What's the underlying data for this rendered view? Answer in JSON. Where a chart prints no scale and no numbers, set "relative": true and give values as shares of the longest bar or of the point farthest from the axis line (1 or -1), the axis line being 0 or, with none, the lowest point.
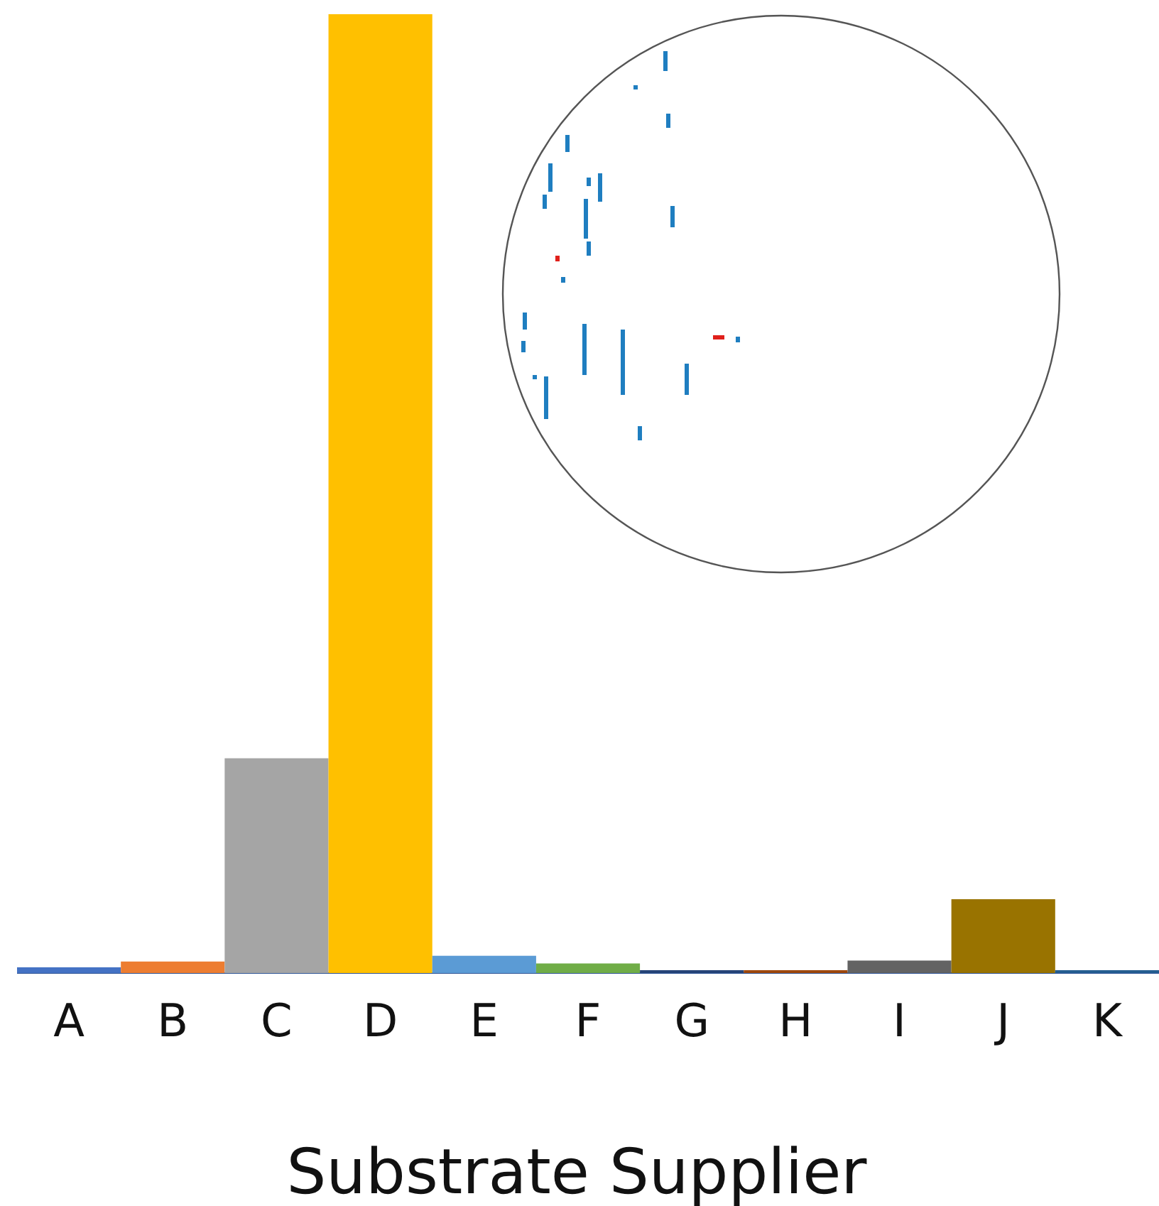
{
  "chart_data": {
    "type": "bar",
    "relative": true,
    "xlabel": "Substrate Supplier",
    "categories": [
      "A",
      "B",
      "C",
      "D",
      "E",
      "F",
      "G",
      "H",
      "I",
      "J",
      "K"
    ],
    "values": [
      0.006,
      0.012,
      0.224,
      1,
      0.018,
      0.01,
      0.003,
      0.003,
      0.013,
      0.077,
      0.003
    ],
    "colors": [
      "#4472c4",
      "#ed7d31",
      "#a5a5a5",
      "#ffc000",
      "#5b9bd5",
      "#70ad47",
      "#264478",
      "#9e480e",
      "#636363",
      "#997300",
      "#255e91"
    ]
  }
}
